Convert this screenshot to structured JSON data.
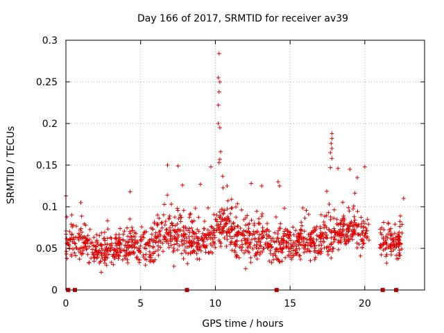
{
  "chart_data": {
    "type": "scatter",
    "title": "Day 166 of 2017, SRMTID for receiver av39",
    "xlabel": "GPS time / hours",
    "ylabel": "SRMTID / TECUs",
    "xlim": [
      0,
      24
    ],
    "ylim": [
      0,
      0.3
    ],
    "xticks": [
      0,
      5,
      10,
      15,
      20
    ],
    "xtick_labels": [
      "0",
      "5",
      "10",
      "15",
      "20"
    ],
    "yticks": [
      0,
      0.05,
      0.1,
      0.15,
      0.2,
      0.25,
      0.3
    ],
    "ytick_labels": [
      "0",
      "0.05",
      "0.1",
      "0.15",
      "0.2",
      "0.25",
      "0.3"
    ],
    "grid": true,
    "marker": "+",
    "color": "#e00000",
    "data_gaps_hours": [
      [
        20.3,
        21.0
      ],
      [
        22.5,
        24.0
      ]
    ],
    "zero_markers_x": [
      0.15,
      0.6,
      8.1,
      14.1,
      21.2,
      22.1
    ],
    "peaks": [
      {
        "x": 10.25,
        "y": 0.284
      },
      {
        "x": 10.2,
        "y": 0.255
      },
      {
        "x": 10.3,
        "y": 0.25
      },
      {
        "x": 10.25,
        "y": 0.238
      },
      {
        "x": 10.2,
        "y": 0.222
      },
      {
        "x": 10.2,
        "y": 0.2
      },
      {
        "x": 10.3,
        "y": 0.195
      },
      {
        "x": 10.35,
        "y": 0.166
      },
      {
        "x": 10.3,
        "y": 0.157
      },
      {
        "x": 10.25,
        "y": 0.153
      },
      {
        "x": 17.8,
        "y": 0.188
      },
      {
        "x": 17.8,
        "y": 0.182
      },
      {
        "x": 17.75,
        "y": 0.176
      },
      {
        "x": 17.8,
        "y": 0.17
      },
      {
        "x": 17.7,
        "y": 0.165
      },
      {
        "x": 17.8,
        "y": 0.158
      },
      {
        "x": 17.7,
        "y": 0.147
      },
      {
        "x": 18.2,
        "y": 0.146
      },
      {
        "x": 19.0,
        "y": 0.145
      },
      {
        "x": 6.8,
        "y": 0.15
      },
      {
        "x": 7.5,
        "y": 0.149
      },
      {
        "x": 9.7,
        "y": 0.148
      },
      {
        "x": 20.0,
        "y": 0.148
      },
      {
        "x": 19.5,
        "y": 0.135
      },
      {
        "x": 12.4,
        "y": 0.128
      },
      {
        "x": 14.2,
        "y": 0.13
      },
      {
        "x": 14.3,
        "y": 0.125
      },
      {
        "x": 13.1,
        "y": 0.125
      },
      {
        "x": 7.8,
        "y": 0.126
      },
      {
        "x": 4.3,
        "y": 0.118
      },
      {
        "x": 9.0,
        "y": 0.127
      },
      {
        "x": 22.6,
        "y": 0.11
      },
      {
        "x": 1.0,
        "y": 0.105
      }
    ],
    "segments": [
      {
        "x0": 0.0,
        "x1": 1.5,
        "mean": 0.058,
        "spread": 0.02,
        "n": 90
      },
      {
        "x0": 1.5,
        "x1": 4.2,
        "mean": 0.048,
        "spread": 0.017,
        "n": 170
      },
      {
        "x0": 4.2,
        "x1": 6.0,
        "mean": 0.055,
        "spread": 0.022,
        "n": 110
      },
      {
        "x0": 6.0,
        "x1": 8.0,
        "mean": 0.068,
        "spread": 0.025,
        "n": 120
      },
      {
        "x0": 8.0,
        "x1": 10.0,
        "mean": 0.06,
        "spread": 0.022,
        "n": 130
      },
      {
        "x0": 10.0,
        "x1": 11.0,
        "mean": 0.075,
        "spread": 0.025,
        "n": 70
      },
      {
        "x0": 11.0,
        "x1": 13.5,
        "mean": 0.062,
        "spread": 0.022,
        "n": 160
      },
      {
        "x0": 13.5,
        "x1": 14.5,
        "mean": 0.05,
        "spread": 0.02,
        "n": 60
      },
      {
        "x0": 14.5,
        "x1": 17.0,
        "mean": 0.058,
        "spread": 0.02,
        "n": 160
      },
      {
        "x0": 17.0,
        "x1": 18.5,
        "mean": 0.065,
        "spread": 0.022,
        "n": 100
      },
      {
        "x0": 18.5,
        "x1": 20.3,
        "mean": 0.07,
        "spread": 0.02,
        "n": 110
      },
      {
        "x0": 21.0,
        "x1": 22.5,
        "mean": 0.058,
        "spread": 0.02,
        "n": 100
      }
    ]
  }
}
